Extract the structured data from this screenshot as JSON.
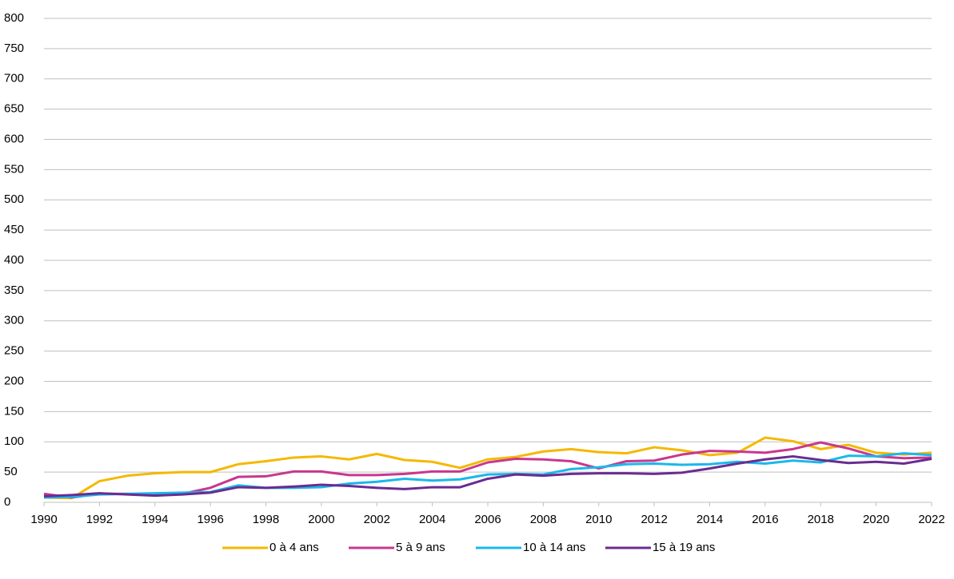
{
  "chart_data": {
    "type": "line",
    "xlim": [
      1990,
      2022
    ],
    "xticks": [
      1990,
      1992,
      1994,
      1996,
      1998,
      2000,
      2002,
      2004,
      2006,
      2008,
      2010,
      2012,
      2014,
      2016,
      2018,
      2020,
      2022
    ],
    "x": [
      1990,
      1991,
      1992,
      1993,
      1994,
      1995,
      1996,
      1997,
      1998,
      1999,
      2000,
      2001,
      2002,
      2003,
      2004,
      2005,
      2006,
      2007,
      2008,
      2009,
      2010,
      2011,
      2012,
      2013,
      2014,
      2015,
      2016,
      2017,
      2018,
      2019,
      2020,
      2021,
      2022
    ],
    "ylim": [
      0,
      800
    ],
    "yticks": [
      0,
      50,
      100,
      150,
      200,
      250,
      300,
      350,
      400,
      450,
      500,
      550,
      600,
      650,
      700,
      750,
      800
    ],
    "grid": true,
    "legend": "bottom",
    "series": [
      {
        "name": "0 à 4 ans",
        "color": "#f5b800",
        "values": [
          8,
          7,
          35,
          44,
          48,
          50,
          50,
          63,
          68,
          74,
          76,
          71,
          80,
          70,
          67,
          57,
          71,
          75,
          84,
          88,
          83,
          81,
          91,
          86,
          78,
          82,
          107,
          101,
          88,
          95,
          82,
          79,
          82
        ]
      },
      {
        "name": "5 à 9 ans",
        "color": "#c8378f",
        "values": [
          14,
          8,
          14,
          14,
          13,
          14,
          24,
          42,
          43,
          51,
          51,
          45,
          45,
          47,
          51,
          51,
          66,
          72,
          71,
          68,
          56,
          68,
          69,
          79,
          85,
          84,
          82,
          88,
          99,
          89,
          76,
          73,
          74
        ]
      },
      {
        "name": "10 à 14 ans",
        "color": "#1ab8ea",
        "values": [
          8,
          9,
          13,
          14,
          15,
          16,
          17,
          28,
          24,
          24,
          25,
          31,
          34,
          39,
          36,
          38,
          46,
          47,
          46,
          55,
          58,
          63,
          64,
          62,
          63,
          67,
          64,
          69,
          66,
          77,
          76,
          81,
          78
        ]
      },
      {
        "name": "15 à 19 ans",
        "color": "#6a2c91",
        "values": [
          10,
          12,
          15,
          13,
          11,
          13,
          16,
          25,
          24,
          26,
          29,
          27,
          24,
          22,
          25,
          25,
          39,
          46,
          44,
          47,
          48,
          48,
          47,
          49,
          56,
          64,
          71,
          76,
          70,
          65,
          67,
          64,
          72
        ]
      }
    ]
  }
}
